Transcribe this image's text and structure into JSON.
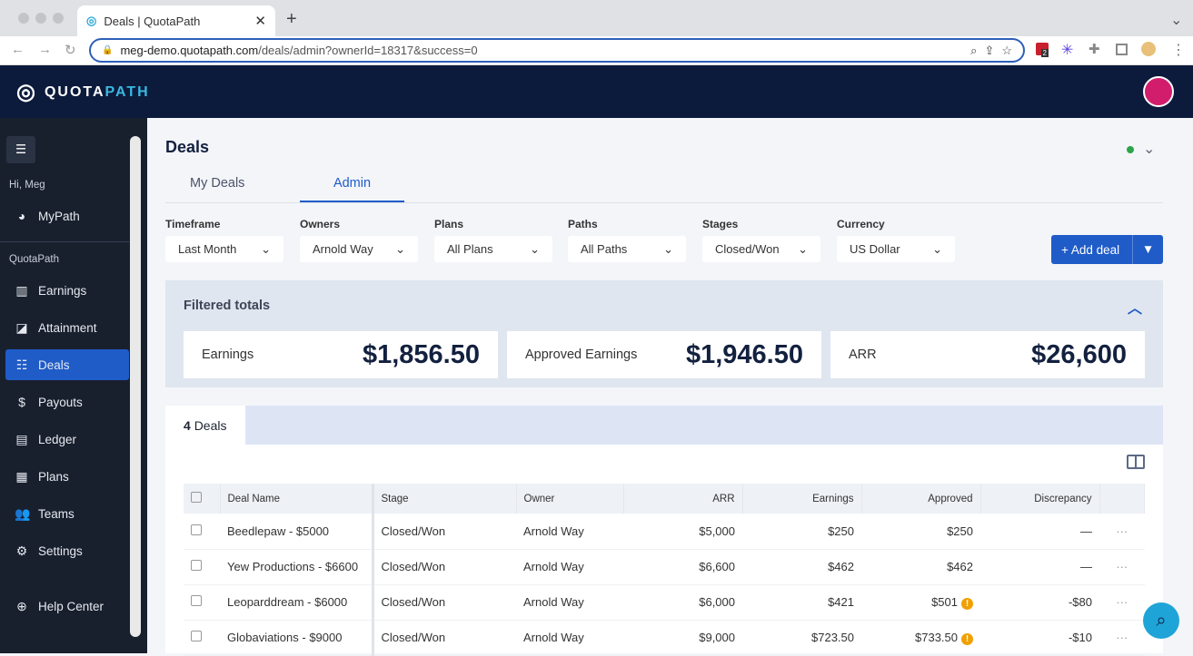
{
  "browser": {
    "tab_title": "Deals | QuotaPath",
    "url_host": "meg-demo.quotapath.com",
    "url_path": "/deals/admin?ownerId=18317&success=0",
    "extension_badge": "2"
  },
  "app": {
    "logo_a": "QUOTA",
    "logo_b": "PATH"
  },
  "sidebar": {
    "greeting": "Hi, Meg",
    "mypath": "MyPath",
    "section": "QuotaPath",
    "items": [
      {
        "label": "Earnings",
        "icon": "bar-chart-icon"
      },
      {
        "label": "Attainment",
        "icon": "chart-box-icon"
      },
      {
        "label": "Deals",
        "icon": "list-icon"
      },
      {
        "label": "Payouts",
        "icon": "dollar-icon"
      },
      {
        "label": "Ledger",
        "icon": "book-icon"
      },
      {
        "label": "Plans",
        "icon": "document-icon"
      },
      {
        "label": "Teams",
        "icon": "people-icon"
      },
      {
        "label": "Settings",
        "icon": "gear-icon"
      }
    ],
    "help": "Help Center"
  },
  "page": {
    "title": "Deals",
    "tabs": [
      "My Deals",
      "Admin"
    ],
    "active_tab": "Admin",
    "status_color": "#2ca44a"
  },
  "filters": [
    {
      "label": "Timeframe",
      "value": "Last Month"
    },
    {
      "label": "Owners",
      "value": "Arnold Way"
    },
    {
      "label": "Plans",
      "value": "All Plans"
    },
    {
      "label": "Paths",
      "value": "All Paths"
    },
    {
      "label": "Stages",
      "value": "Closed/Won"
    },
    {
      "label": "Currency",
      "value": "US Dollar"
    }
  ],
  "add_deal": "+ Add deal",
  "totals": {
    "title": "Filtered totals",
    "cards": [
      {
        "label": "Earnings",
        "value": "$1,856.50"
      },
      {
        "label": "Approved Earnings",
        "value": "$1,946.50"
      },
      {
        "label": "ARR",
        "value": "$26,600"
      }
    ]
  },
  "deals": {
    "count": "4",
    "count_label": "Deals",
    "columns": [
      "Deal Name",
      "Stage",
      "Owner",
      "ARR",
      "Earnings",
      "Approved",
      "Discrepancy"
    ],
    "rows": [
      [
        "Beedlepaw - $5000",
        "Closed/Won",
        "Arnold Way",
        "$5,000",
        "$250",
        "$250",
        "—"
      ],
      [
        "Yew Productions - $6600",
        "Closed/Won",
        "Arnold Way",
        "$6,600",
        "$462",
        "$462",
        "—"
      ],
      [
        "Leoparddream - $6000",
        "Closed/Won",
        "Arnold Way",
        "$6,000",
        "$421",
        "$501",
        "-$80"
      ],
      [
        "Globaviations - $9000",
        "Closed/Won",
        "Arnold Way",
        "$9,000",
        "$723.50",
        "$733.50",
        "-$10"
      ]
    ],
    "warnings": [
      false,
      false,
      true,
      true
    ]
  }
}
